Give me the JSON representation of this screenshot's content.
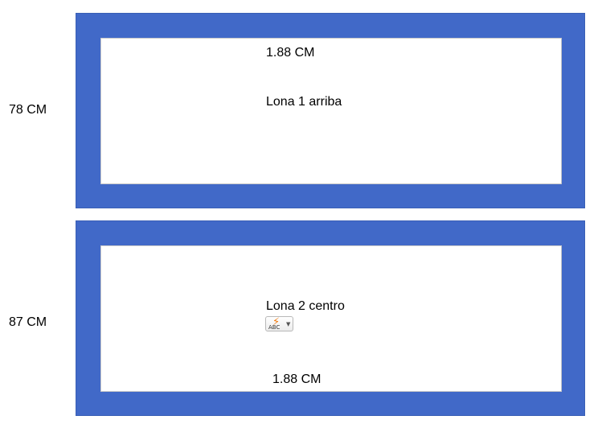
{
  "colors": {
    "frame_fill": "#4169c8",
    "inner_fill": "#ffffff",
    "autocorrect_bolt": "#f07a10"
  },
  "top_panel": {
    "height_label": "78 CM",
    "width_label": "1.88 CM",
    "title": "Lona 1 arriba"
  },
  "bottom_panel": {
    "height_label": "87 CM",
    "width_label": "1.88 CM",
    "title": "Lona 2 centro"
  },
  "autocorrect_button": {
    "icon": "autocorrect-abc-lightning-icon",
    "abc_text": "ABC",
    "bolt_glyph": "⚡",
    "caret_glyph": "▼"
  }
}
